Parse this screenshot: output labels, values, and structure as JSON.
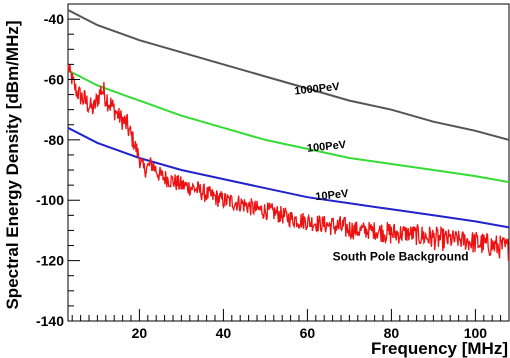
{
  "chart_data": {
    "type": "line",
    "xlabel": "Frequency [MHz]",
    "ylabel": "Spectral Energy Density [dBm/MHz]",
    "xlim": [
      3,
      108
    ],
    "ylim": [
      -140,
      -35
    ],
    "x_ticks": [
      20,
      40,
      60,
      80,
      100
    ],
    "y_ticks": [
      -140,
      -120,
      -100,
      -80,
      -60,
      -40
    ],
    "grid": false,
    "legend": "none",
    "series": [
      {
        "name": "1000PeV",
        "color": "#555555",
        "x": [
          3,
          10,
          20,
          30,
          40,
          50,
          60,
          70,
          80,
          90,
          100,
          108
        ],
        "y": [
          -37,
          -42,
          -47,
          -51,
          -55,
          -59,
          -63,
          -67,
          -70,
          -74,
          -77,
          -80
        ]
      },
      {
        "name": "100PeV",
        "color": "#33dd33",
        "x": [
          3,
          10,
          20,
          30,
          40,
          50,
          60,
          70,
          80,
          90,
          100,
          108
        ],
        "y": [
          -57,
          -62,
          -67,
          -72,
          -76,
          -80,
          -83,
          -86,
          -88,
          -90,
          -92,
          -94
        ]
      },
      {
        "name": "10PeV",
        "color": "#2222cc",
        "x": [
          3,
          10,
          20,
          30,
          40,
          50,
          60,
          70,
          80,
          90,
          100,
          108
        ],
        "y": [
          -76,
          -81,
          -86,
          -90,
          -93,
          -96,
          -99,
          -101,
          -103,
          -105,
          -107,
          -109
        ]
      },
      {
        "name": "South Pole Background",
        "color": "#ee1111",
        "x": [
          3,
          5,
          7,
          9,
          11,
          13,
          15,
          17,
          19,
          21,
          23,
          25,
          27,
          30,
          33,
          36,
          40,
          44,
          48,
          52,
          56,
          60,
          64,
          68,
          72,
          76,
          80,
          84,
          88,
          92,
          96,
          100,
          104,
          108
        ],
        "y": [
          -56,
          -64,
          -67,
          -70,
          -63,
          -68,
          -72,
          -75,
          -82,
          -90,
          -88,
          -92,
          -93,
          -95,
          -96,
          -98,
          -100,
          -101,
          -103,
          -104,
          -106,
          -107,
          -108,
          -109,
          -110,
          -110,
          -111,
          -111,
          -112,
          -113,
          -113,
          -114,
          -115,
          -116
        ],
        "noise": [
          3,
          3,
          4,
          3,
          4,
          4,
          3,
          4,
          3,
          3,
          3,
          3,
          3,
          3,
          3,
          3,
          3,
          3,
          3,
          3,
          3,
          3,
          3,
          4,
          3,
          3,
          4,
          3,
          4,
          4,
          3,
          4,
          4,
          4
        ]
      }
    ],
    "annotations": [
      {
        "text": "1000PeV",
        "x": 57,
        "y": -65
      },
      {
        "text": "100PeV",
        "x": 60,
        "y": -84
      },
      {
        "text": "10PeV",
        "x": 62,
        "y": -100
      },
      {
        "text": "South Pole Background",
        "x": 66,
        "y": -120
      }
    ]
  }
}
